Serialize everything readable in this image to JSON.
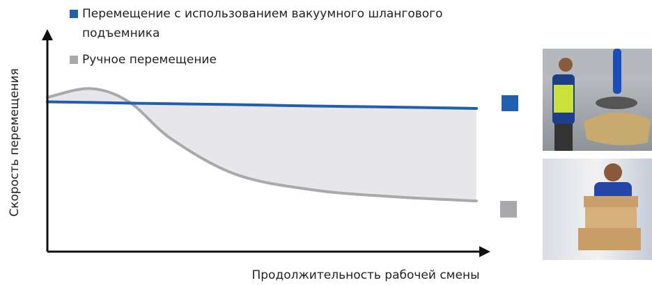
{
  "chart_data": {
    "type": "line",
    "x_label": "Продолжительность рабочей смены",
    "y_label": "Скорость перемещения",
    "x": [
      0,
      10,
      19,
      29,
      44,
      62,
      80,
      100
    ],
    "xlim": [
      0,
      100
    ],
    "ylim": [
      0,
      100
    ],
    "series": [
      {
        "name": "Перемещение с использованием вакуумного шлангового подъемника",
        "color": "#1f5fae",
        "values": [
          68,
          67.7,
          67.4,
          67.1,
          66.7,
          66.1,
          65.6,
          65
        ]
      },
      {
        "name": "Ручное перемещение",
        "color": "#a9a9ab",
        "values": [
          70,
          74,
          68,
          51,
          35,
          28,
          25,
          23
        ]
      }
    ],
    "fill_color": "#e7e7e9"
  }
}
